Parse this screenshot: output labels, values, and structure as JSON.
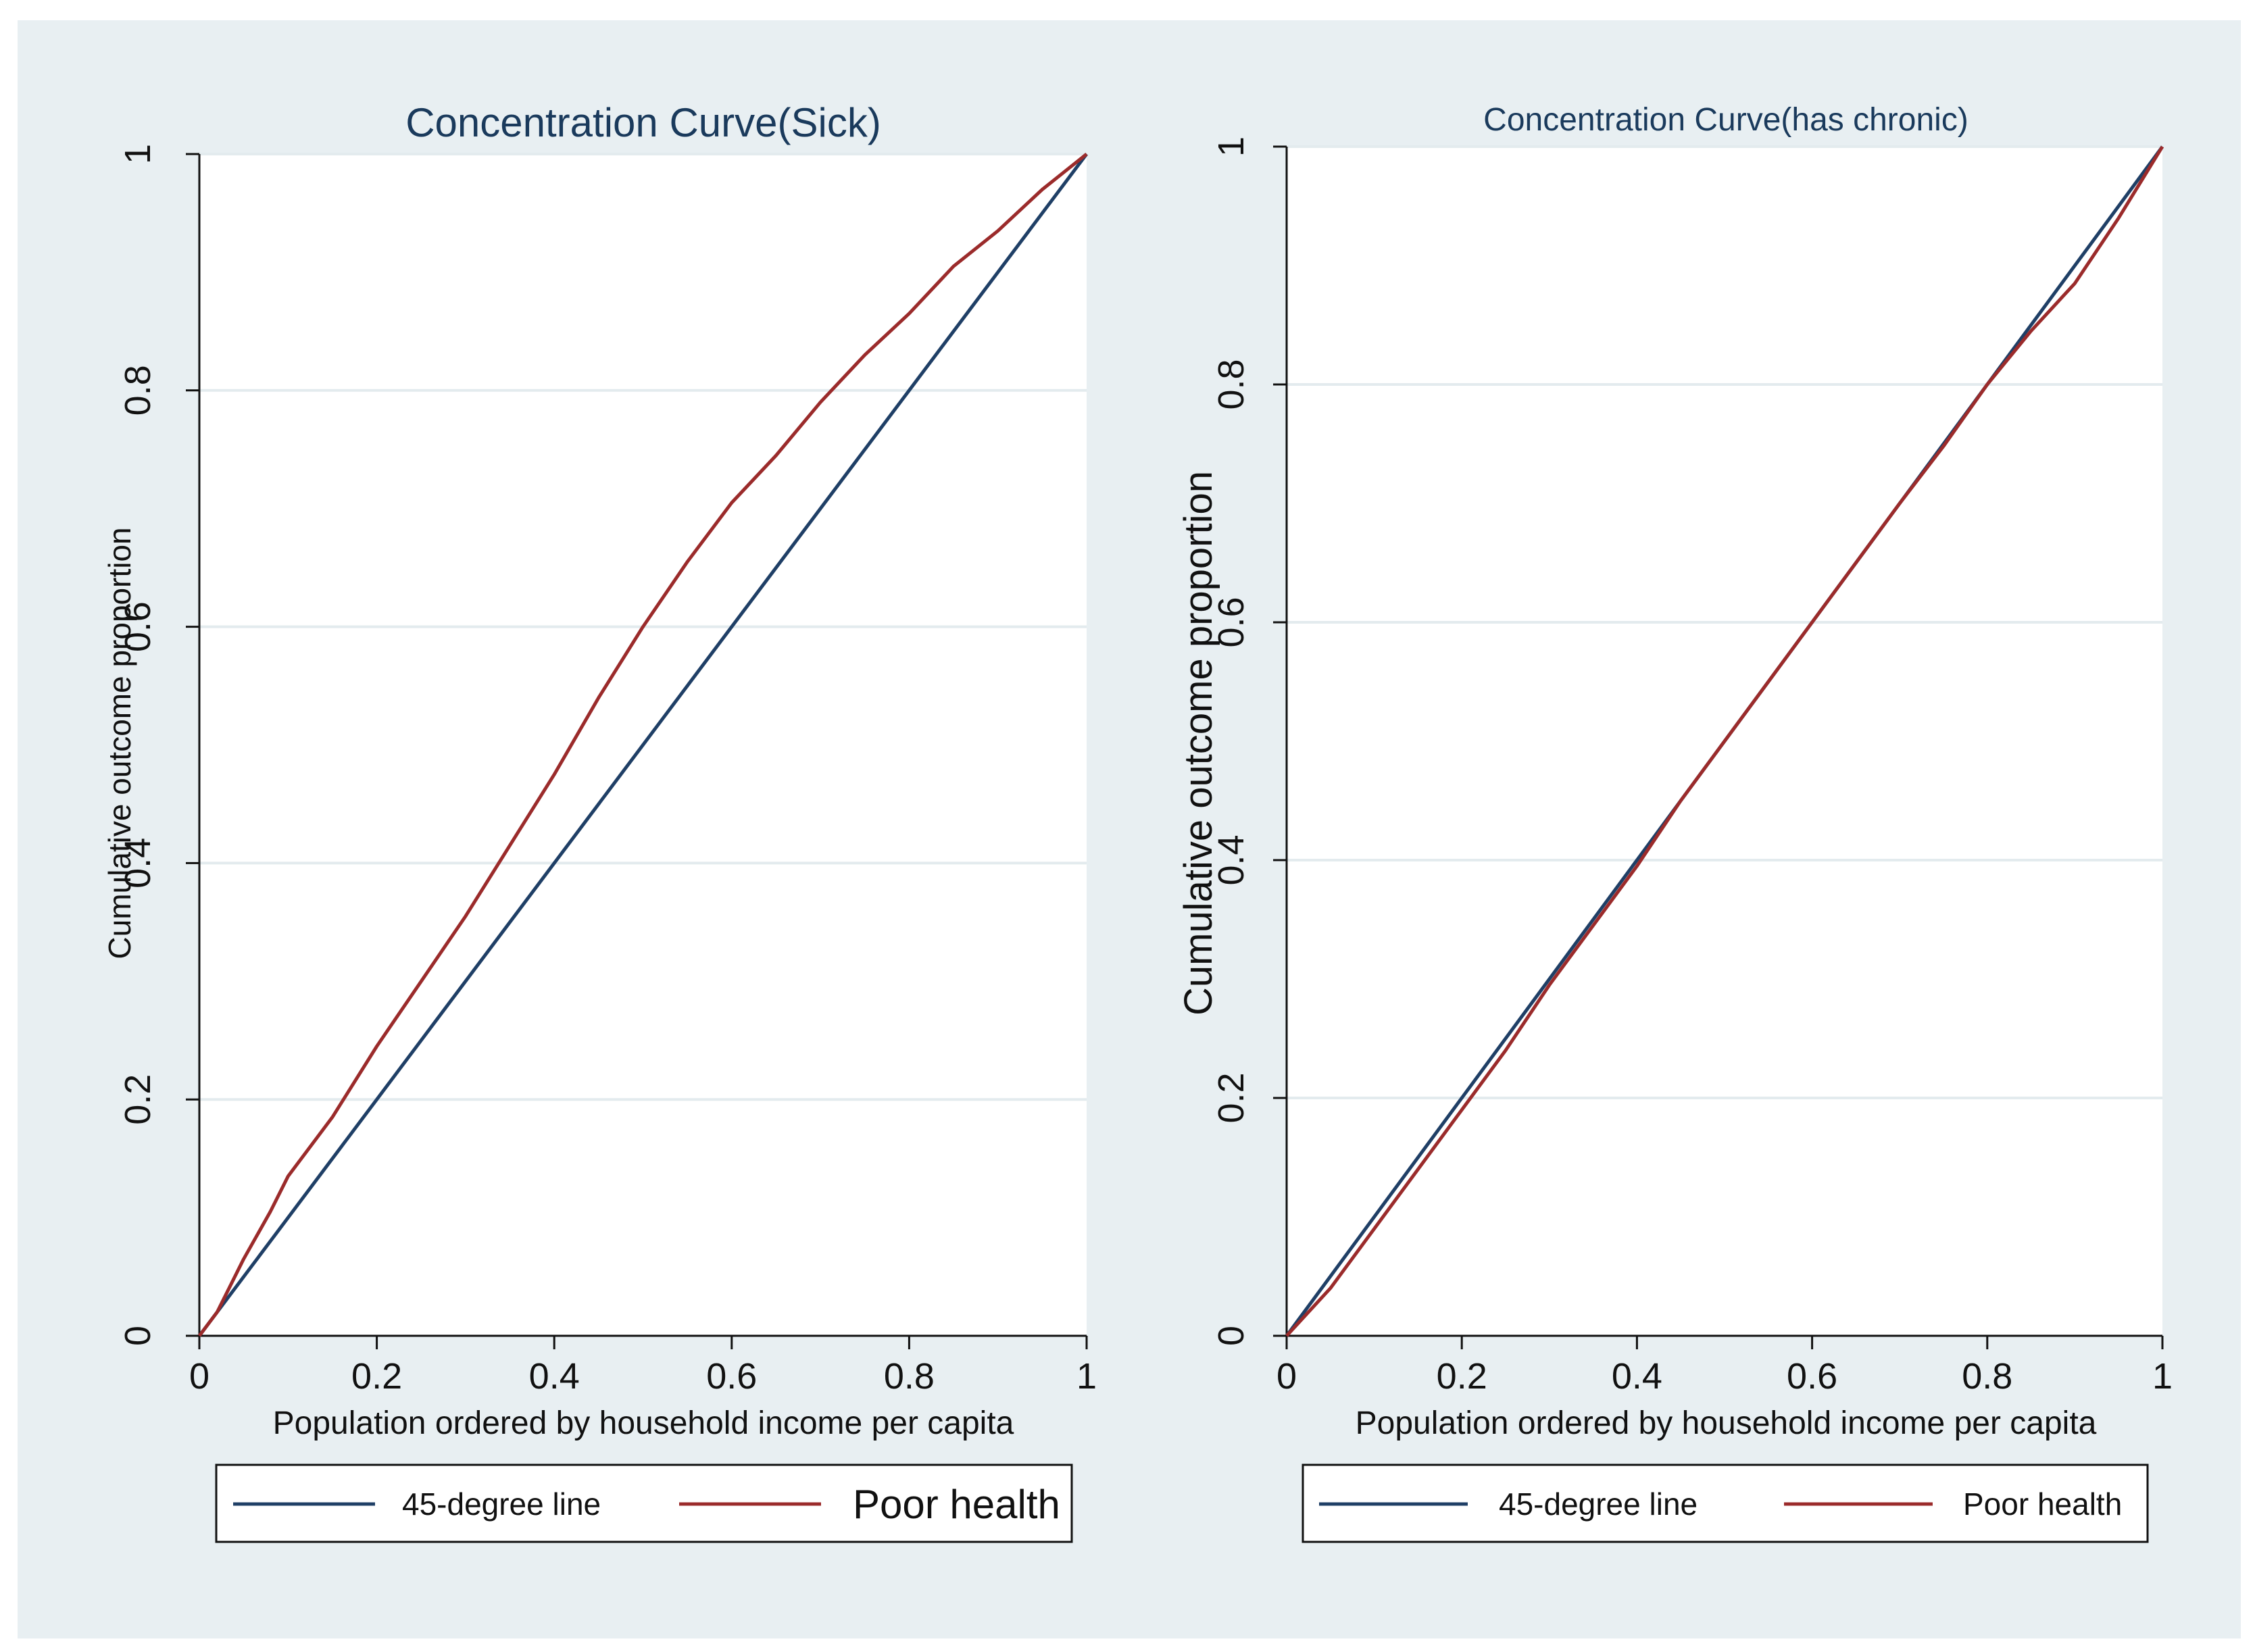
{
  "chart_data": [
    {
      "type": "line",
      "title": "Concentration Curve(Sick)",
      "xlabel": "Population ordered by household income per capita",
      "ylabel": "Cumulative outcome proportion",
      "xlim": [
        0,
        1
      ],
      "ylim": [
        0,
        1
      ],
      "xticks": [
        "0",
        "0.2",
        "0.4",
        "0.6",
        "0.8",
        "1"
      ],
      "xtick_values": [
        0,
        0.2,
        0.4,
        0.6,
        0.8,
        1
      ],
      "yticks": [
        "0",
        "0.2",
        "0.4",
        "0.6",
        "0.8",
        "1"
      ],
      "ytick_values": [
        0,
        0.2,
        0.4,
        0.6,
        0.8,
        1
      ],
      "grid": true,
      "legend_position": "bottom",
      "series": [
        {
          "name": "45-degree line",
          "color": "#1f3f66",
          "x": [
            0,
            1
          ],
          "y": [
            0,
            1
          ]
        },
        {
          "name": "Poor health",
          "color": "#9b2b2b",
          "x": [
            0,
            0.02,
            0.05,
            0.08,
            0.1,
            0.15,
            0.2,
            0.25,
            0.3,
            0.35,
            0.4,
            0.45,
            0.5,
            0.55,
            0.6,
            0.65,
            0.7,
            0.75,
            0.8,
            0.85,
            0.9,
            0.95,
            1
          ],
          "y": [
            0,
            0.02,
            0.065,
            0.105,
            0.135,
            0.185,
            0.245,
            0.3,
            0.355,
            0.415,
            0.475,
            0.54,
            0.6,
            0.655,
            0.705,
            0.745,
            0.79,
            0.83,
            0.865,
            0.905,
            0.935,
            0.97,
            1
          ]
        }
      ]
    },
    {
      "type": "line",
      "title": "Concentration Curve(has chronic)",
      "xlabel": "Population ordered by household income per capita",
      "ylabel": "Cumulative outcome proportion",
      "xlim": [
        0,
        1
      ],
      "ylim": [
        0,
        1
      ],
      "xticks": [
        "0",
        "0.2",
        "0.4",
        "0.6",
        "0.8",
        "1"
      ],
      "xtick_values": [
        0,
        0.2,
        0.4,
        0.6,
        0.8,
        1
      ],
      "yticks": [
        "0",
        "0.2",
        "0.4",
        "0.6",
        "0.8",
        "1"
      ],
      "ytick_values": [
        0,
        0.2,
        0.4,
        0.6,
        0.8,
        1
      ],
      "grid": true,
      "legend_position": "bottom",
      "series": [
        {
          "name": "45-degree line",
          "color": "#1f3f66",
          "x": [
            0,
            1
          ],
          "y": [
            0,
            1
          ]
        },
        {
          "name": "Poor health",
          "color": "#9b2b2b",
          "x": [
            0,
            0.05,
            0.1,
            0.15,
            0.2,
            0.25,
            0.3,
            0.35,
            0.4,
            0.45,
            0.5,
            0.55,
            0.6,
            0.65,
            0.7,
            0.75,
            0.8,
            0.85,
            0.9,
            0.95,
            1
          ],
          "y": [
            0,
            0.04,
            0.09,
            0.14,
            0.19,
            0.24,
            0.295,
            0.345,
            0.395,
            0.45,
            0.5,
            0.55,
            0.6,
            0.65,
            0.7,
            0.748,
            0.8,
            0.845,
            0.885,
            0.94,
            1
          ]
        }
      ]
    }
  ]
}
